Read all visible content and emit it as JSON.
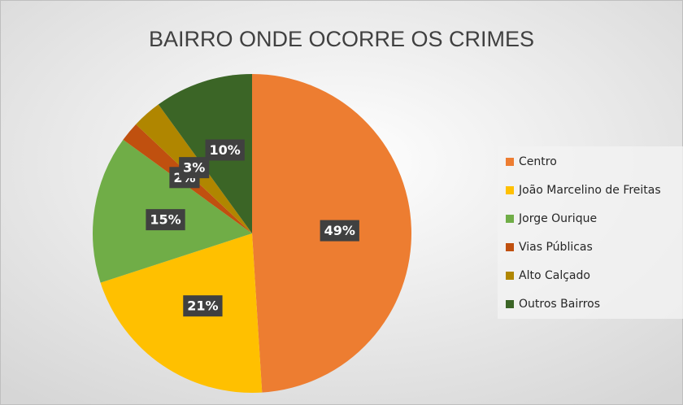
{
  "chart_data": {
    "type": "pie",
    "title": "BAIRRO ONDE OCORRE OS CRIMES",
    "categories": [
      "Centro",
      "João Marcelino de Freitas",
      "Jorge Ourique",
      "Vias Públicas",
      "Alto Calçado",
      "Outros Bairros"
    ],
    "values": [
      49,
      21,
      15,
      2,
      3,
      10
    ],
    "value_labels": [
      "49%",
      "21%",
      "15%",
      "2%",
      "3%",
      "10%"
    ],
    "colors": [
      "#ed7d31",
      "#ffc000",
      "#70ad47",
      "#c0500f",
      "#b08600",
      "#3b6526"
    ],
    "legend": "right"
  }
}
